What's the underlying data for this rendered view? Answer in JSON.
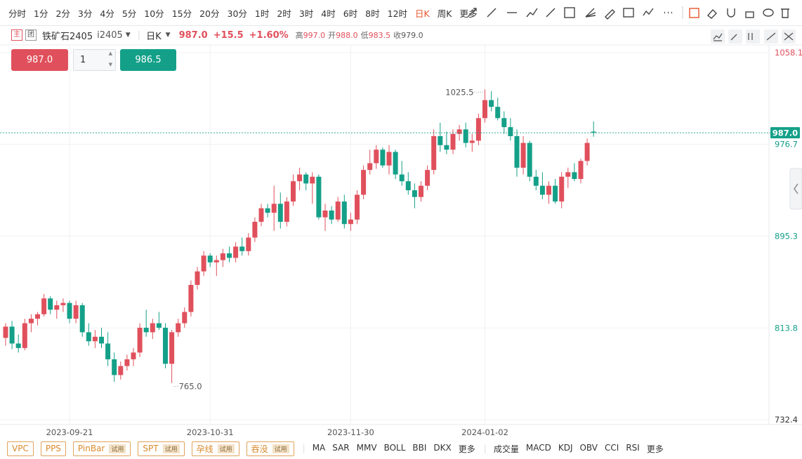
{
  "toolbar": {
    "periods": [
      "分时",
      "1分",
      "2分",
      "3分",
      "4分",
      "5分",
      "10分",
      "15分",
      "20分",
      "30分",
      "1时",
      "2时",
      "3时",
      "4时",
      "6时",
      "8时",
      "12时",
      "日K",
      "周K",
      "更多"
    ]
  },
  "header": {
    "tags": [
      "主",
      "团"
    ],
    "name": "铁矿石2405",
    "code": "i2405",
    "period": "日K",
    "price": "987.0",
    "change": "+15.5",
    "change_pct": "+1.60%",
    "stats": [
      {
        "label": "高",
        "value": "997.0"
      },
      {
        "label": "开",
        "value": "988.0"
      },
      {
        "label": "低",
        "value": "983.5"
      },
      {
        "label": "收",
        "value": "979.0"
      }
    ]
  },
  "trade": {
    "sell": "987.0",
    "qty": "1",
    "buy": "986.5"
  },
  "chart_data": {
    "type": "candlestick",
    "categories": [
      null,
      null,
      null,
      null,
      null,
      null,
      null,
      null,
      null,
      null,
      "2023-09-21",
      null,
      null,
      null,
      null,
      null,
      null,
      null,
      null,
      null,
      null,
      null,
      null,
      null,
      null,
      null,
      null,
      null,
      null,
      null,
      null,
      null,
      "2023-10-31",
      null,
      null,
      null,
      null,
      null,
      null,
      null,
      null,
      null,
      null,
      null,
      null,
      null,
      null,
      null,
      null,
      null,
      null,
      null,
      null,
      null,
      "2023-11-30",
      null,
      null,
      null,
      null,
      null,
      null,
      null,
      null,
      null,
      null,
      null,
      null,
      null,
      null,
      null,
      null,
      null,
      null,
      null,
      null,
      "2024-01-02",
      null,
      null,
      null,
      null,
      null,
      null,
      null,
      null,
      null,
      null,
      null,
      null,
      null,
      null,
      null,
      null,
      null
    ],
    "candles": [
      [
        805,
        818,
        798,
        815
      ],
      [
        815,
        820,
        795,
        800
      ],
      [
        800,
        808,
        792,
        796
      ],
      [
        796,
        822,
        794,
        818
      ],
      [
        818,
        826,
        810,
        822
      ],
      [
        822,
        828,
        816,
        826
      ],
      [
        826,
        844,
        824,
        840
      ],
      [
        840,
        842,
        826,
        830
      ],
      [
        830,
        838,
        822,
        834
      ],
      [
        834,
        840,
        828,
        836
      ],
      [
        836,
        838,
        818,
        822
      ],
      [
        822,
        838,
        818,
        834
      ],
      [
        834,
        836,
        806,
        810
      ],
      [
        810,
        818,
        798,
        802
      ],
      [
        802,
        812,
        796,
        806
      ],
      [
        806,
        814,
        796,
        800
      ],
      [
        800,
        810,
        780,
        786
      ],
      [
        786,
        792,
        766,
        772
      ],
      [
        772,
        784,
        768,
        780
      ],
      [
        780,
        790,
        776,
        786
      ],
      [
        786,
        796,
        780,
        792
      ],
      [
        792,
        818,
        788,
        814
      ],
      [
        814,
        830,
        806,
        810
      ],
      [
        810,
        822,
        804,
        818
      ],
      [
        818,
        828,
        812,
        814
      ],
      [
        814,
        818,
        778,
        782
      ],
      [
        782,
        812,
        765,
        810
      ],
      [
        810,
        822,
        806,
        818
      ],
      [
        818,
        832,
        814,
        828
      ],
      [
        828,
        856,
        824,
        852
      ],
      [
        852,
        868,
        848,
        864
      ],
      [
        864,
        882,
        860,
        878
      ],
      [
        878,
        880,
        868,
        872
      ],
      [
        872,
        878,
        860,
        874
      ],
      [
        874,
        884,
        868,
        880
      ],
      [
        880,
        886,
        872,
        876
      ],
      [
        876,
        890,
        872,
        886
      ],
      [
        886,
        894,
        878,
        882
      ],
      [
        882,
        898,
        878,
        894
      ],
      [
        894,
        912,
        890,
        908
      ],
      [
        908,
        924,
        904,
        920
      ],
      [
        920,
        924,
        912,
        916
      ],
      [
        916,
        940,
        900,
        924
      ],
      [
        924,
        934,
        902,
        908
      ],
      [
        908,
        930,
        904,
        926
      ],
      [
        926,
        950,
        922,
        944
      ],
      [
        944,
        956,
        936,
        950
      ],
      [
        950,
        952,
        936,
        942
      ],
      [
        942,
        952,
        924,
        948
      ],
      [
        948,
        950,
        910,
        912
      ],
      [
        912,
        924,
        900,
        918
      ],
      [
        918,
        922,
        906,
        910
      ],
      [
        910,
        930,
        908,
        926
      ],
      [
        926,
        932,
        902,
        906
      ],
      [
        906,
        916,
        900,
        910
      ],
      [
        910,
        936,
        906,
        932
      ],
      [
        932,
        958,
        928,
        954
      ],
      [
        954,
        972,
        950,
        960
      ],
      [
        960,
        976,
        955,
        972
      ],
      [
        972,
        974,
        956,
        958
      ],
      [
        958,
        976,
        950,
        970
      ],
      [
        970,
        972,
        946,
        950
      ],
      [
        950,
        962,
        940,
        944
      ],
      [
        944,
        952,
        932,
        936
      ],
      [
        936,
        942,
        920,
        930
      ],
      [
        930,
        944,
        926,
        940
      ],
      [
        940,
        958,
        936,
        954
      ],
      [
        954,
        990,
        950,
        984
      ],
      [
        984,
        996,
        970,
        976
      ],
      [
        976,
        988,
        968,
        972
      ],
      [
        972,
        990,
        968,
        986
      ],
      [
        986,
        994,
        980,
        990
      ],
      [
        990,
        996,
        974,
        978
      ],
      [
        978,
        986,
        970,
        980
      ],
      [
        980,
        1004,
        976,
        1000
      ],
      [
        1000,
        1025.5,
        996,
        1016
      ],
      [
        1016,
        1024,
        1006,
        1010
      ],
      [
        1010,
        1018,
        998,
        1000
      ],
      [
        1000,
        1006,
        986,
        992
      ],
      [
        992,
        1000,
        980,
        984
      ],
      [
        984,
        990,
        948,
        956
      ],
      [
        956,
        984,
        950,
        978
      ],
      [
        978,
        980,
        944,
        948
      ],
      [
        948,
        954,
        936,
        940
      ],
      [
        940,
        952,
        928,
        932
      ],
      [
        932,
        944,
        924,
        940
      ],
      [
        940,
        946,
        924,
        926
      ],
      [
        926,
        952,
        920,
        948
      ],
      [
        948,
        956,
        938,
        952
      ],
      [
        952,
        960,
        944,
        946
      ],
      [
        946,
        964,
        942,
        962
      ],
      [
        962,
        982,
        958,
        978
      ],
      [
        988,
        997,
        983.5,
        987
      ]
    ],
    "up_color": "#e0505c",
    "down_color": "#14a088",
    "ylim": [
      732.4,
      1058.1
    ],
    "yticks": [
      732.4,
      813.8,
      895.3,
      976.7,
      1058.1
    ],
    "grid": true,
    "last_price": {
      "value": 987,
      "label": "987.0"
    },
    "max_label": "1025.5",
    "min_label": "765.0"
  },
  "bottom": {
    "patterns": [
      {
        "name": "VPC"
      },
      {
        "name": "PPS"
      },
      {
        "name": "PinBar",
        "badge": "试用"
      },
      {
        "name": "SPT",
        "badge": "试用"
      },
      {
        "name": "孕线",
        "badge": "试用"
      },
      {
        "name": "吞没",
        "badge": "试用"
      }
    ],
    "main_indicators": [
      "MA",
      "SAR",
      "MMV",
      "BOLL",
      "BBI",
      "DKX",
      "更多"
    ],
    "sub_indicators": [
      "成交量",
      "MACD",
      "KDJ",
      "OBV",
      "CCI",
      "RSI",
      "更多"
    ]
  }
}
